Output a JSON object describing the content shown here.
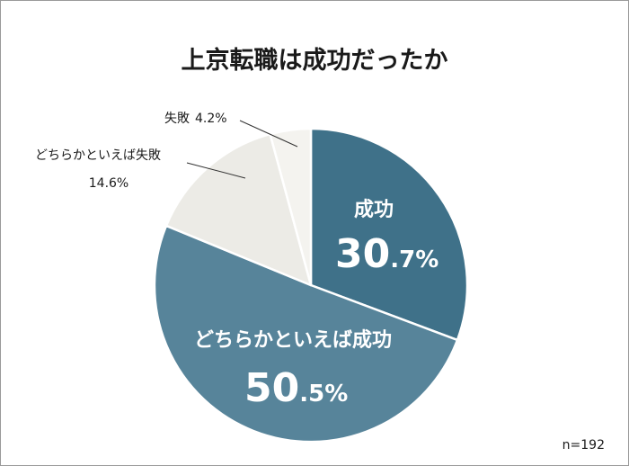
{
  "chart_data": {
    "type": "pie",
    "title": "上京転職は成功だったか",
    "slices": [
      {
        "label": "成功",
        "value": 30.7,
        "value_int": "30",
        "value_dec": ".7%",
        "color": "#3f7189"
      },
      {
        "label": "どちらかといえば成功",
        "value": 50.5,
        "value_int": "50",
        "value_dec": ".5%",
        "color": "#57849a"
      },
      {
        "label": "どちらかといえば失敗",
        "value": 14.6,
        "value_text": "14.6%",
        "color": "#ecebe6"
      },
      {
        "label": "失敗",
        "value": 4.2,
        "value_text": "4.2%",
        "color": "#f4f3ef"
      }
    ],
    "note": "n=192"
  }
}
